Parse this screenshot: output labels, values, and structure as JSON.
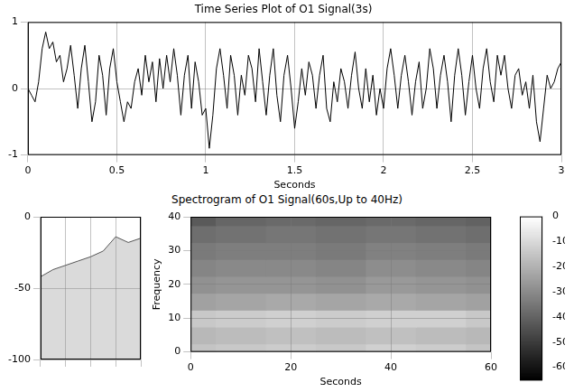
{
  "chart_data": [
    {
      "type": "line",
      "title": "Time Series Plot of O1 Signal(3s)",
      "xlabel": "Seconds",
      "x": [
        0,
        0.02,
        0.04,
        0.06,
        0.08,
        0.1,
        0.12,
        0.14,
        0.16,
        0.18,
        0.2,
        0.22,
        0.24,
        0.26,
        0.28,
        0.3,
        0.32,
        0.34,
        0.36,
        0.38,
        0.4,
        0.42,
        0.44,
        0.46,
        0.48,
        0.5,
        0.52,
        0.54,
        0.56,
        0.58,
        0.6,
        0.62,
        0.64,
        0.66,
        0.68,
        0.7,
        0.72,
        0.74,
        0.76,
        0.78,
        0.8,
        0.82,
        0.84,
        0.86,
        0.88,
        0.9,
        0.92,
        0.94,
        0.96,
        0.98,
        1,
        1.02,
        1.04,
        1.06,
        1.08,
        1.1,
        1.12,
        1.14,
        1.16,
        1.18,
        1.2,
        1.22,
        1.24,
        1.26,
        1.28,
        1.3,
        1.32,
        1.34,
        1.36,
        1.38,
        1.4,
        1.42,
        1.44,
        1.46,
        1.48,
        1.5,
        1.52,
        1.54,
        1.56,
        1.58,
        1.6,
        1.62,
        1.64,
        1.66,
        1.68,
        1.7,
        1.72,
        1.74,
        1.76,
        1.78,
        1.8,
        1.82,
        1.84,
        1.86,
        1.88,
        1.9,
        1.92,
        1.94,
        1.96,
        1.98,
        2,
        2.02,
        2.04,
        2.06,
        2.08,
        2.1,
        2.12,
        2.14,
        2.16,
        2.18,
        2.2,
        2.22,
        2.24,
        2.26,
        2.28,
        2.3,
        2.32,
        2.34,
        2.36,
        2.38,
        2.4,
        2.42,
        2.44,
        2.46,
        2.48,
        2.5,
        2.52,
        2.54,
        2.56,
        2.58,
        2.6,
        2.62,
        2.64,
        2.66,
        2.68,
        2.7,
        2.72,
        2.74,
        2.76,
        2.78,
        2.8,
        2.82,
        2.84,
        2.86,
        2.88,
        2.9,
        2.92,
        2.94,
        2.96,
        2.98,
        3
      ],
      "values": [
        0,
        -0.1,
        -0.2,
        0.1,
        0.6,
        0.85,
        0.6,
        0.7,
        0.4,
        0.5,
        0.1,
        0.3,
        0.65,
        0.2,
        -0.3,
        0.3,
        0.65,
        0.1,
        -0.5,
        -0.2,
        0.5,
        0.2,
        -0.4,
        0.3,
        0.6,
        0.1,
        -0.2,
        -0.5,
        -0.2,
        -0.3,
        0.1,
        0.3,
        -0.1,
        0.5,
        0.1,
        0.4,
        -0.2,
        0.45,
        0,
        0.5,
        0.1,
        0.6,
        0.2,
        -0.4,
        0.2,
        0.5,
        -0.3,
        0.4,
        0.1,
        -0.4,
        -0.3,
        -0.9,
        -0.4,
        0.3,
        0.6,
        0.2,
        -0.3,
        0.5,
        0.2,
        -0.4,
        0.2,
        -0.1,
        0.5,
        0.3,
        -0.2,
        0.6,
        0.1,
        -0.4,
        0.2,
        0.6,
        -0.1,
        -0.5,
        0.2,
        0.5,
        0,
        -0.6,
        -0.2,
        0.3,
        -0.1,
        0.4,
        0.2,
        -0.3,
        0.2,
        0.5,
        -0.3,
        -0.5,
        0.1,
        -0.2,
        0.3,
        0.1,
        -0.3,
        0.2,
        0.55,
        0,
        -0.3,
        0.3,
        -0.2,
        0.2,
        -0.4,
        0,
        -0.3,
        0.3,
        0.6,
        0.2,
        -0.3,
        0.2,
        0.5,
        0.1,
        -0.4,
        0.1,
        0.4,
        -0.3,
        0,
        0.6,
        0.3,
        -0.3,
        0.2,
        0.5,
        0.1,
        -0.5,
        0.2,
        0.6,
        0.2,
        -0.4,
        0.1,
        0.5,
        0,
        -0.3,
        0.3,
        0.6,
        0.1,
        -0.2,
        0.5,
        0.2,
        0.5,
        0,
        -0.3,
        0.2,
        0.3,
        -0.1,
        0.1,
        -0.3,
        0.2,
        -0.5,
        -0.8,
        -0.3,
        0.2,
        0,
        0.1,
        0.3,
        0.4
      ],
      "color": "#000000",
      "xlim": [
        0,
        3
      ],
      "xticks": [
        0,
        0.5,
        1,
        1.5,
        2,
        2.5,
        3
      ],
      "ylim": [
        -1,
        1
      ],
      "yticks": [
        -1,
        0,
        1
      ],
      "grid": true
    },
    {
      "type": "heatmap",
      "title": "Spectrogram of O1 Signal(60s,Up to 40Hz)",
      "xlabel": "Seconds",
      "ylabel": "Frequency",
      "x": [
        0,
        10,
        20,
        30,
        40,
        50,
        60
      ],
      "y": [
        0,
        5,
        10,
        15,
        20,
        25,
        30,
        35,
        40
      ],
      "cells": [
        [
          -15,
          -14,
          -13,
          -14,
          -12,
          -13,
          -15
        ],
        [
          -18,
          -17,
          -16,
          -17,
          -16,
          -17,
          -18
        ],
        [
          -14,
          -13,
          -12,
          -13,
          -12,
          -12,
          -14
        ],
        [
          -24,
          -23,
          -22,
          -23,
          -22,
          -23,
          -24
        ],
        [
          -28,
          -27,
          -27,
          -28,
          -26,
          -27,
          -28
        ],
        [
          -31,
          -30,
          -30,
          -31,
          -29,
          -30,
          -31
        ],
        [
          -34,
          -33,
          -33,
          -34,
          -32,
          -33,
          -34
        ],
        [
          -37,
          -36,
          -35,
          -36,
          -35,
          -36,
          -37
        ],
        [
          -42,
          -39,
          -38,
          -39,
          -38,
          -39,
          -40
        ]
      ],
      "xlim": [
        0,
        60
      ],
      "xticks": [
        0,
        20,
        40,
        60
      ],
      "ylim": [
        0,
        40
      ],
      "yticks": [
        0,
        10,
        20,
        30,
        40
      ],
      "zlim": [
        -100,
        0
      ],
      "zticks": [
        -100,
        -50,
        0
      ],
      "colorbar": {
        "range": [
          -65,
          0
        ],
        "ticks": [
          0,
          -10,
          -20,
          -30,
          -40,
          -50,
          -60
        ]
      },
      "color": "gray",
      "grid": true
    }
  ]
}
